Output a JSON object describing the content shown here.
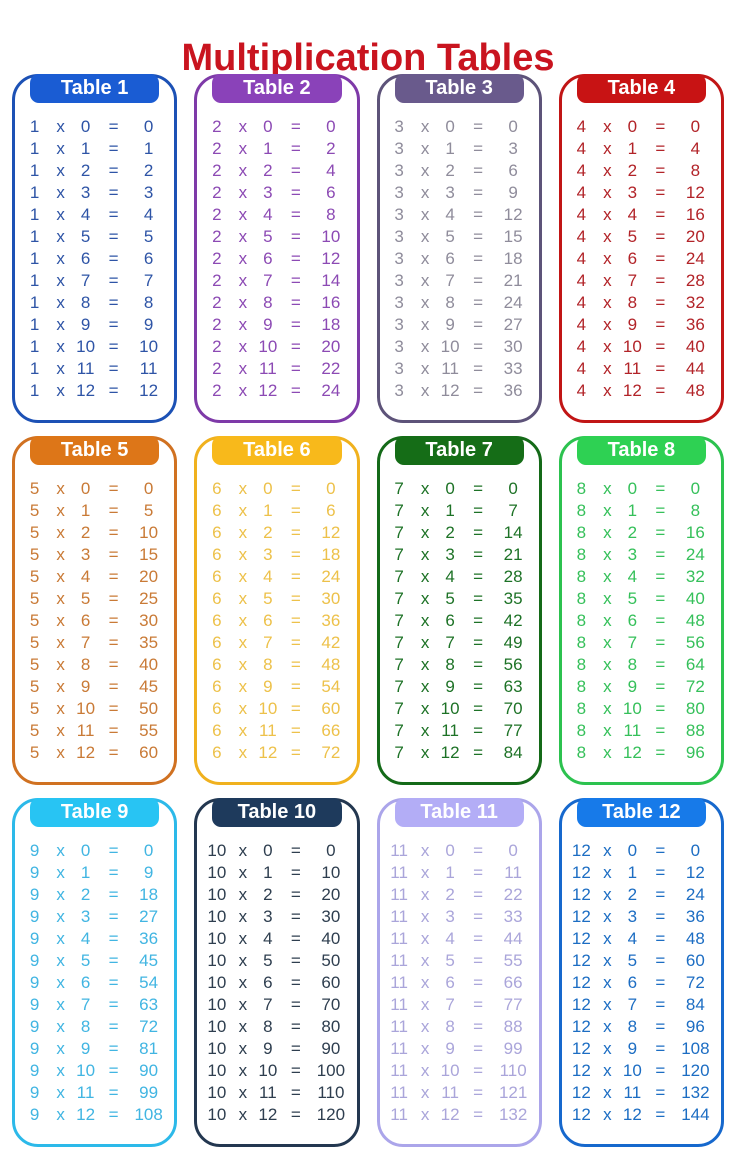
{
  "title": "Multiplication Tables",
  "title_color": "#c9141f",
  "symbols": {
    "times": "x",
    "equals": "="
  },
  "tables": [
    {
      "label": "Table 1",
      "factor": 1,
      "colors": {
        "header": "#1a5cd3",
        "border": "#1c51b5",
        "text": "#2e54a6"
      },
      "rows": [
        [
          "1",
          "0",
          "0"
        ],
        [
          "1",
          "1",
          "1"
        ],
        [
          "1",
          "2",
          "2"
        ],
        [
          "1",
          "3",
          "3"
        ],
        [
          "1",
          "4",
          "4"
        ],
        [
          "1",
          "5",
          "5"
        ],
        [
          "1",
          "6",
          "6"
        ],
        [
          "1",
          "7",
          "7"
        ],
        [
          "1",
          "8",
          "8"
        ],
        [
          "1",
          "9",
          "9"
        ],
        [
          "1",
          "10",
          "10"
        ],
        [
          "1",
          "11",
          "11"
        ],
        [
          "1",
          "12",
          "12"
        ]
      ]
    },
    {
      "label": "Table 2",
      "factor": 2,
      "colors": {
        "header": "#8a42b9",
        "border": "#7e3aa8",
        "text": "#8c4ab4"
      },
      "rows": [
        [
          "2",
          "0",
          "0"
        ],
        [
          "2",
          "1",
          "2"
        ],
        [
          "2",
          "2",
          "4"
        ],
        [
          "2",
          "3",
          "6"
        ],
        [
          "2",
          "4",
          "8"
        ],
        [
          "2",
          "5",
          "10"
        ],
        [
          "2",
          "6",
          "12"
        ],
        [
          "2",
          "7",
          "14"
        ],
        [
          "2",
          "8",
          "16"
        ],
        [
          "2",
          "9",
          "18"
        ],
        [
          "2",
          "10",
          "20"
        ],
        [
          "2",
          "11",
          "22"
        ],
        [
          "2",
          "12",
          "24"
        ]
      ]
    },
    {
      "label": "Table 3",
      "factor": 3,
      "colors": {
        "header": "#695a8c",
        "border": "#5d5379",
        "text": "#8f8c9b"
      },
      "rows": [
        [
          "3",
          "0",
          "0"
        ],
        [
          "3",
          "1",
          "3"
        ],
        [
          "3",
          "2",
          "6"
        ],
        [
          "3",
          "3",
          "9"
        ],
        [
          "3",
          "4",
          "12"
        ],
        [
          "3",
          "5",
          "15"
        ],
        [
          "3",
          "6",
          "18"
        ],
        [
          "3",
          "7",
          "21"
        ],
        [
          "3",
          "8",
          "24"
        ],
        [
          "3",
          "9",
          "27"
        ],
        [
          "3",
          "10",
          "30"
        ],
        [
          "3",
          "11",
          "33"
        ],
        [
          "3",
          "12",
          "36"
        ]
      ]
    },
    {
      "label": "Table 4",
      "factor": 4,
      "colors": {
        "header": "#c81314",
        "border": "#c11515",
        "text": "#b22328"
      },
      "rows": [
        [
          "4",
          "0",
          "0"
        ],
        [
          "4",
          "1",
          "4"
        ],
        [
          "4",
          "2",
          "8"
        ],
        [
          "4",
          "3",
          "12"
        ],
        [
          "4",
          "4",
          "16"
        ],
        [
          "4",
          "5",
          "20"
        ],
        [
          "4",
          "6",
          "24"
        ],
        [
          "4",
          "7",
          "28"
        ],
        [
          "4",
          "8",
          "32"
        ],
        [
          "4",
          "9",
          "36"
        ],
        [
          "4",
          "10",
          "40"
        ],
        [
          "4",
          "11",
          "44"
        ],
        [
          "4",
          "12",
          "48"
        ]
      ]
    },
    {
      "label": "Table 5",
      "factor": 5,
      "colors": {
        "header": "#dd7618",
        "border": "#d07121",
        "text": "#c97a36"
      },
      "rows": [
        [
          "5",
          "0",
          "0"
        ],
        [
          "5",
          "1",
          "5"
        ],
        [
          "5",
          "2",
          "10"
        ],
        [
          "5",
          "3",
          "15"
        ],
        [
          "5",
          "4",
          "20"
        ],
        [
          "5",
          "5",
          "25"
        ],
        [
          "5",
          "6",
          "30"
        ],
        [
          "5",
          "7",
          "35"
        ],
        [
          "5",
          "8",
          "40"
        ],
        [
          "5",
          "9",
          "45"
        ],
        [
          "5",
          "10",
          "50"
        ],
        [
          "5",
          "11",
          "55"
        ],
        [
          "5",
          "12",
          "60"
        ]
      ]
    },
    {
      "label": "Table 6",
      "factor": 6,
      "colors": {
        "header": "#f8b91b",
        "border": "#f0b11e",
        "text": "#edc14a"
      },
      "rows": [
        [
          "6",
          "0",
          "0"
        ],
        [
          "6",
          "1",
          "6"
        ],
        [
          "6",
          "2",
          "12"
        ],
        [
          "6",
          "3",
          "18"
        ],
        [
          "6",
          "4",
          "24"
        ],
        [
          "6",
          "5",
          "30"
        ],
        [
          "6",
          "6",
          "36"
        ],
        [
          "6",
          "7",
          "42"
        ],
        [
          "6",
          "8",
          "48"
        ],
        [
          "6",
          "9",
          "54"
        ],
        [
          "6",
          "10",
          "60"
        ],
        [
          "6",
          "11",
          "66"
        ],
        [
          "6",
          "12",
          "72"
        ]
      ]
    },
    {
      "label": "Table 7",
      "factor": 7,
      "colors": {
        "header": "#156d17",
        "border": "#146a18",
        "text": "#1d7226"
      },
      "rows": [
        [
          "7",
          "0",
          "0"
        ],
        [
          "7",
          "1",
          "7"
        ],
        [
          "7",
          "2",
          "14"
        ],
        [
          "7",
          "3",
          "21"
        ],
        [
          "7",
          "4",
          "28"
        ],
        [
          "7",
          "5",
          "35"
        ],
        [
          "7",
          "6",
          "42"
        ],
        [
          "7",
          "7",
          "49"
        ],
        [
          "7",
          "8",
          "56"
        ],
        [
          "7",
          "9",
          "63"
        ],
        [
          "7",
          "10",
          "70"
        ],
        [
          "7",
          "11",
          "77"
        ],
        [
          "7",
          "12",
          "84"
        ]
      ]
    },
    {
      "label": "Table 8",
      "factor": 8,
      "colors": {
        "header": "#2ed153",
        "border": "#2cc24f",
        "text": "#35c05a"
      },
      "rows": [
        [
          "8",
          "0",
          "0"
        ],
        [
          "8",
          "1",
          "8"
        ],
        [
          "8",
          "2",
          "16"
        ],
        [
          "8",
          "3",
          "24"
        ],
        [
          "8",
          "4",
          "32"
        ],
        [
          "8",
          "5",
          "40"
        ],
        [
          "8",
          "6",
          "48"
        ],
        [
          "8",
          "7",
          "56"
        ],
        [
          "8",
          "8",
          "64"
        ],
        [
          "8",
          "9",
          "72"
        ],
        [
          "8",
          "10",
          "80"
        ],
        [
          "8",
          "11",
          "88"
        ],
        [
          "8",
          "12",
          "96"
        ]
      ]
    },
    {
      "label": "Table 9",
      "factor": 9,
      "colors": {
        "header": "#28c4f3",
        "border": "#2cb9e9",
        "text": "#41b5e2"
      },
      "rows": [
        [
          "9",
          "0",
          "0"
        ],
        [
          "9",
          "1",
          "9"
        ],
        [
          "9",
          "2",
          "18"
        ],
        [
          "9",
          "3",
          "27"
        ],
        [
          "9",
          "4",
          "36"
        ],
        [
          "9",
          "5",
          "45"
        ],
        [
          "9",
          "6",
          "54"
        ],
        [
          "9",
          "7",
          "63"
        ],
        [
          "9",
          "8",
          "72"
        ],
        [
          "9",
          "9",
          "81"
        ],
        [
          "9",
          "10",
          "90"
        ],
        [
          "9",
          "11",
          "99"
        ],
        [
          "9",
          "12",
          "108"
        ]
      ]
    },
    {
      "label": "Table 10",
      "factor": 10,
      "colors": {
        "header": "#1e3a5c",
        "border": "#233750",
        "text": "#2e3e4f"
      },
      "rows": [
        [
          "10",
          "0",
          "0"
        ],
        [
          "10",
          "1",
          "10"
        ],
        [
          "10",
          "2",
          "20"
        ],
        [
          "10",
          "3",
          "30"
        ],
        [
          "10",
          "4",
          "40"
        ],
        [
          "10",
          "5",
          "50"
        ],
        [
          "10",
          "6",
          "60"
        ],
        [
          "10",
          "7",
          "70"
        ],
        [
          "10",
          "8",
          "80"
        ],
        [
          "10",
          "9",
          "90"
        ],
        [
          "10",
          "10",
          "100"
        ],
        [
          "10",
          "11",
          "110"
        ],
        [
          "10",
          "12",
          "120"
        ]
      ]
    },
    {
      "label": "Table 11",
      "factor": 11,
      "colors": {
        "header": "#b3adf6",
        "border": "#aba5ea",
        "text": "#aaa5da"
      },
      "rows": [
        [
          "11",
          "0",
          "0"
        ],
        [
          "11",
          "1",
          "11"
        ],
        [
          "11",
          "2",
          "22"
        ],
        [
          "11",
          "3",
          "33"
        ],
        [
          "11",
          "4",
          "44"
        ],
        [
          "11",
          "5",
          "55"
        ],
        [
          "11",
          "6",
          "66"
        ],
        [
          "11",
          "7",
          "77"
        ],
        [
          "11",
          "8",
          "88"
        ],
        [
          "11",
          "9",
          "99"
        ],
        [
          "11",
          "10",
          "110"
        ],
        [
          "11",
          "11",
          "121"
        ],
        [
          "11",
          "12",
          "132"
        ]
      ]
    },
    {
      "label": "Table 12",
      "factor": 12,
      "colors": {
        "header": "#177ae9",
        "border": "#1668cd",
        "text": "#1c6dc3"
      },
      "rows": [
        [
          "12",
          "0",
          "0"
        ],
        [
          "12",
          "1",
          "12"
        ],
        [
          "12",
          "2",
          "24"
        ],
        [
          "12",
          "3",
          "36"
        ],
        [
          "12",
          "4",
          "48"
        ],
        [
          "12",
          "5",
          "60"
        ],
        [
          "12",
          "6",
          "72"
        ],
        [
          "12",
          "7",
          "84"
        ],
        [
          "12",
          "8",
          "96"
        ],
        [
          "12",
          "9",
          "108"
        ],
        [
          "12",
          "10",
          "120"
        ],
        [
          "12",
          "11",
          "132"
        ],
        [
          "12",
          "12",
          "144"
        ]
      ]
    }
  ]
}
